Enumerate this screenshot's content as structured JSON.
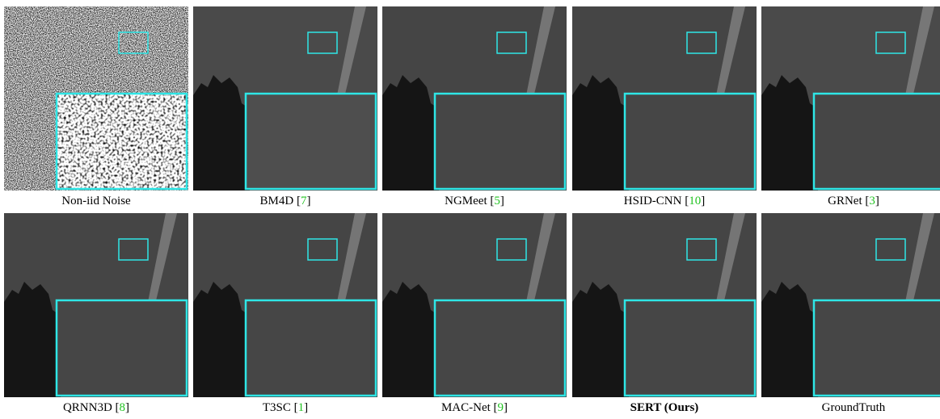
{
  "panels": [
    {
      "caption": [
        "Non-iid Noise"
      ],
      "noise": true
    },
    {
      "caption": [
        "BM4D [",
        "7",
        "]"
      ]
    },
    {
      "caption": [
        "NGMeet [",
        "5",
        "]"
      ]
    },
    {
      "caption": [
        "HSID-CNN [",
        "10",
        "]"
      ]
    },
    {
      "caption": [
        "GRNet [",
        "3",
        "]"
      ]
    },
    {
      "caption": [
        "QRNN3D [",
        "8",
        "]"
      ]
    },
    {
      "caption": [
        "T3SC [",
        "1",
        "]"
      ]
    },
    {
      "caption": [
        "MAC-Net [",
        "9",
        "]"
      ]
    },
    {
      "caption": [
        "SERT (Ours)"
      ],
      "bold": true
    },
    {
      "caption": [
        "GroundTruth"
      ]
    }
  ]
}
